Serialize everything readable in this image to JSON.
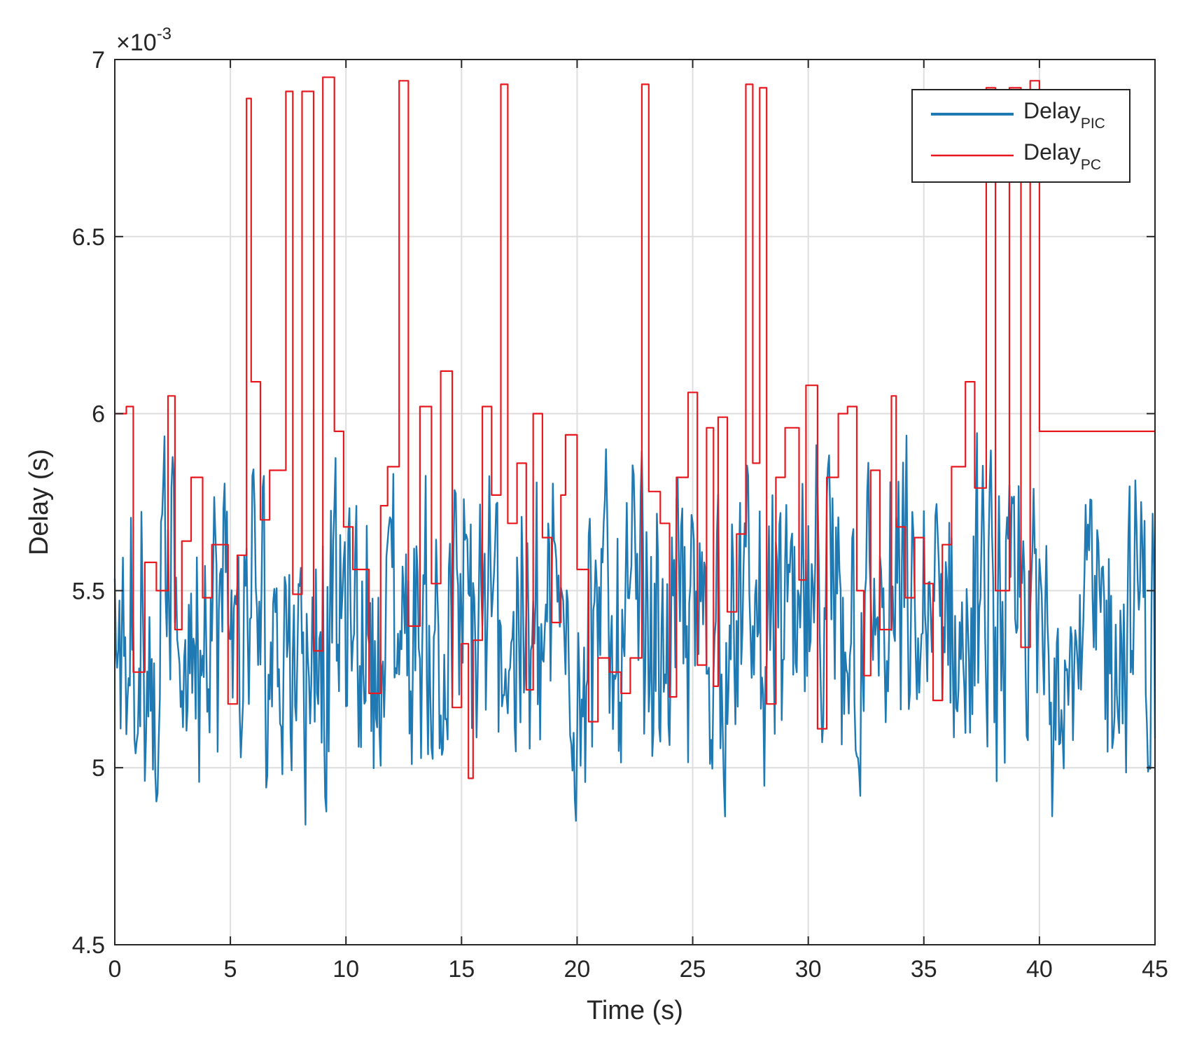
{
  "chart_data": {
    "type": "line",
    "title": "",
    "xlabel": "Time (s)",
    "ylabel": "Delay (s)",
    "y_exponent_label": "×10",
    "y_exponent_power": "-3",
    "xlim": [
      0,
      45
    ],
    "ylim": [
      4.5,
      7.0
    ],
    "x_ticks": [
      0,
      5,
      10,
      15,
      20,
      25,
      30,
      35,
      40,
      45
    ],
    "x_tick_labels": [
      "0",
      "5",
      "10",
      "15",
      "20",
      "25",
      "30",
      "35",
      "40",
      "45"
    ],
    "y_ticks": [
      4.5,
      5.0,
      5.5,
      6.0,
      6.5,
      7.0
    ],
    "y_tick_labels": [
      "4.5",
      "5",
      "5.5",
      "6",
      "6.5",
      "7"
    ],
    "grid": true,
    "legend_position": "top-right",
    "series": [
      {
        "name": "Delay",
        "subscript": "PIC",
        "color": "#1f7ab3",
        "style": "dense noisy line, values roughly 4.8–6.0 ×10^-3 s, sample interval 0.05 s",
        "sample_interval_s": 0.05,
        "x_start": 0,
        "x_end": 45,
        "y_min": 4.8,
        "y_max": 5.97
      },
      {
        "name": "Delay",
        "subscript": "PC",
        "color": "#e8191e",
        "style": "step line",
        "x": [
          0,
          0.5,
          0.8,
          1.3,
          1.8,
          2.3,
          2.6,
          2.9,
          3.3,
          3.8,
          4.2,
          4.9,
          5.3,
          5.7,
          5.9,
          6.3,
          6.7,
          7.4,
          7.7,
          8.1,
          8.6,
          9.0,
          9.5,
          9.9,
          10.3,
          11.0,
          11.5,
          11.8,
          12.3,
          12.7,
          13.2,
          13.7,
          14.1,
          14.6,
          15.0,
          15.3,
          15.5,
          15.9,
          16.3,
          16.7,
          17.0,
          17.4,
          17.8,
          18.1,
          18.5,
          18.9,
          19.3,
          19.5,
          20.0,
          20.5,
          20.9,
          21.4,
          21.9,
          22.3,
          22.8,
          23.1,
          23.6,
          24.0,
          24.3,
          24.8,
          25.2,
          25.6,
          25.9,
          26.1,
          26.5,
          26.9,
          27.3,
          27.6,
          27.9,
          28.2,
          28.6,
          29.0,
          29.6,
          29.9,
          30.4,
          30.8,
          31.3,
          31.7,
          32.1,
          32.4,
          32.7,
          33.1,
          33.6,
          33.8,
          34.2,
          34.6,
          35.0,
          35.4,
          35.8,
          36.2,
          36.8,
          37.2,
          37.7,
          38.1,
          38.7,
          39.2,
          39.6,
          40.0,
          40.4,
          40.8,
          41.3,
          41.8,
          42.2,
          42.8,
          43.1,
          43.6,
          44.1,
          44.5,
          45.0
        ],
        "y": [
          6.0,
          6.02,
          5.27,
          5.58,
          5.5,
          6.05,
          5.39,
          5.64,
          5.82,
          5.48,
          5.63,
          5.18,
          5.6,
          6.89,
          6.09,
          5.7,
          5.84,
          6.91,
          5.49,
          6.91,
          5.33,
          6.95,
          5.95,
          5.68,
          5.56,
          5.21,
          5.74,
          5.85,
          6.94,
          5.4,
          6.02,
          5.52,
          6.12,
          5.17,
          5.35,
          4.97,
          5.36,
          6.02,
          5.77,
          6.93,
          5.69,
          5.86,
          5.22,
          6.0,
          5.65,
          5.41,
          5.77,
          5.94,
          5.56,
          5.13,
          5.31,
          5.27,
          5.21,
          5.31,
          6.93,
          5.78,
          5.69,
          5.2,
          5.82,
          6.06,
          5.29,
          5.96,
          5.23,
          5.99,
          5.44,
          5.66,
          6.93,
          5.86,
          6.92,
          5.18,
          5.82,
          5.96,
          5.53,
          6.08,
          5.11,
          5.82,
          6.0,
          6.02,
          5.5,
          5.26,
          5.84,
          5.39,
          6.05,
          5.68,
          5.48,
          5.65,
          5.52,
          5.19,
          5.63,
          5.85,
          6.09,
          5.79,
          6.92,
          5.5,
          6.92,
          5.34,
          6.94,
          5.95,
          5.95,
          5.95,
          5.95,
          5.95,
          5.95,
          5.95,
          5.95,
          5.95,
          5.95,
          5.95,
          5.95
        ]
      }
    ]
  }
}
